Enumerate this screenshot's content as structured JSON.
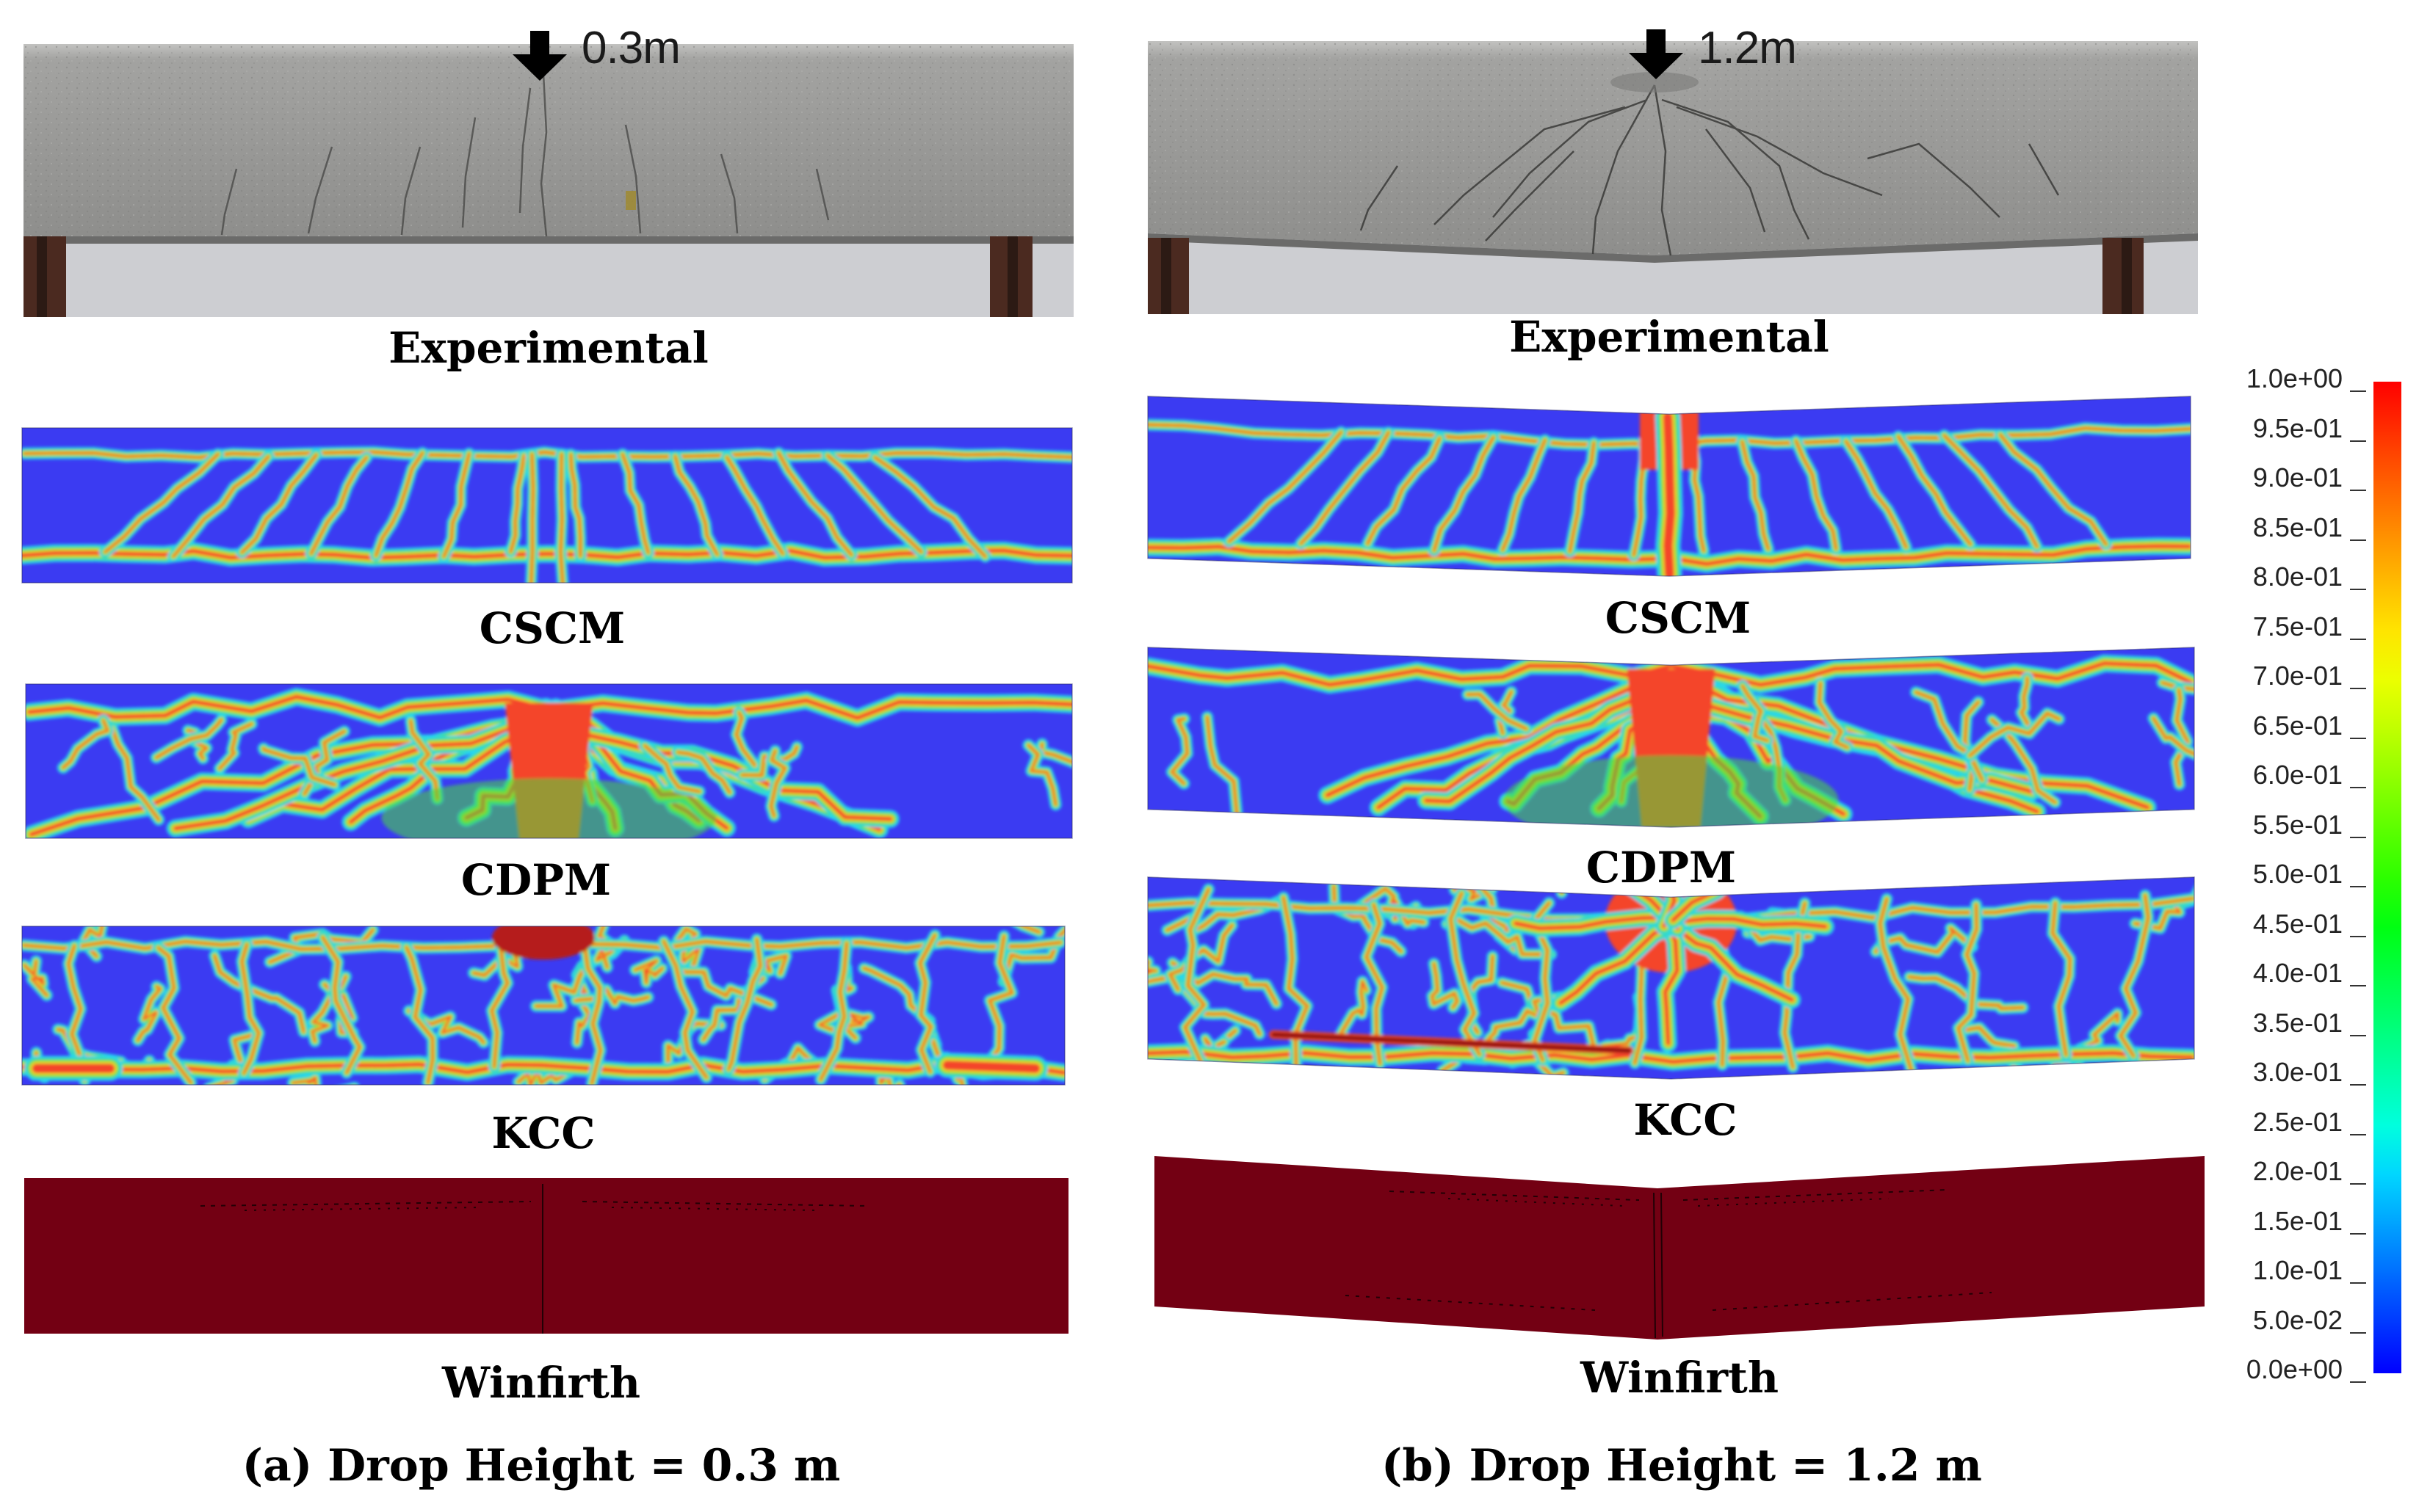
{
  "columns": {
    "a": {
      "drop_label": "0.3m",
      "labels": {
        "experimental": "Experimental",
        "cscm": "CSCM",
        "cdpm": "CDPM",
        "kcc": "KCC",
        "winfirth": "Winfirth"
      },
      "caption": "(a) Drop Height = 0.3 m"
    },
    "b": {
      "drop_label": "1.2m",
      "labels": {
        "experimental": "Experimental",
        "cscm": "CSCM",
        "cdpm": "CDPM",
        "kcc": "KCC",
        "winfirth": "Winfirth"
      },
      "caption": "(b) Drop Height = 1.2 m"
    }
  },
  "colorbar": {
    "ticks": [
      "1.0e+00",
      "9.5e-01",
      "9.0e-01",
      "8.5e-01",
      "8.0e-01",
      "7.5e-01",
      "7.0e-01",
      "6.5e-01",
      "6.0e-01",
      "5.5e-01",
      "5.0e-01",
      "4.5e-01",
      "4.0e-01",
      "3.5e-01",
      "3.0e-01",
      "2.5e-01",
      "2.0e-01",
      "1.5e-01",
      "1.0e-01",
      "5.0e-02",
      "0.0e+00"
    ],
    "colors": [
      "#ff0000",
      "#ff3000",
      "#ff5e00",
      "#ff8c00",
      "#ffb900",
      "#ffe400",
      "#ecff00",
      "#c0ff00",
      "#90ff00",
      "#5dff00",
      "#2dff00",
      "#00ff12",
      "#00ff45",
      "#00ff78",
      "#00ffab",
      "#00ffde",
      "#00d6ff",
      "#00a2ff",
      "#006dff",
      "#0037ff",
      "#0000ff"
    ]
  },
  "palette": {
    "blue": "#3b3bf2",
    "cyan": "#25d8f0",
    "green": "#4cdc3c",
    "yellow": "#e8e232",
    "red": "#f4442a",
    "winfirth": "#730013",
    "concrete": "#9b9b98"
  }
}
